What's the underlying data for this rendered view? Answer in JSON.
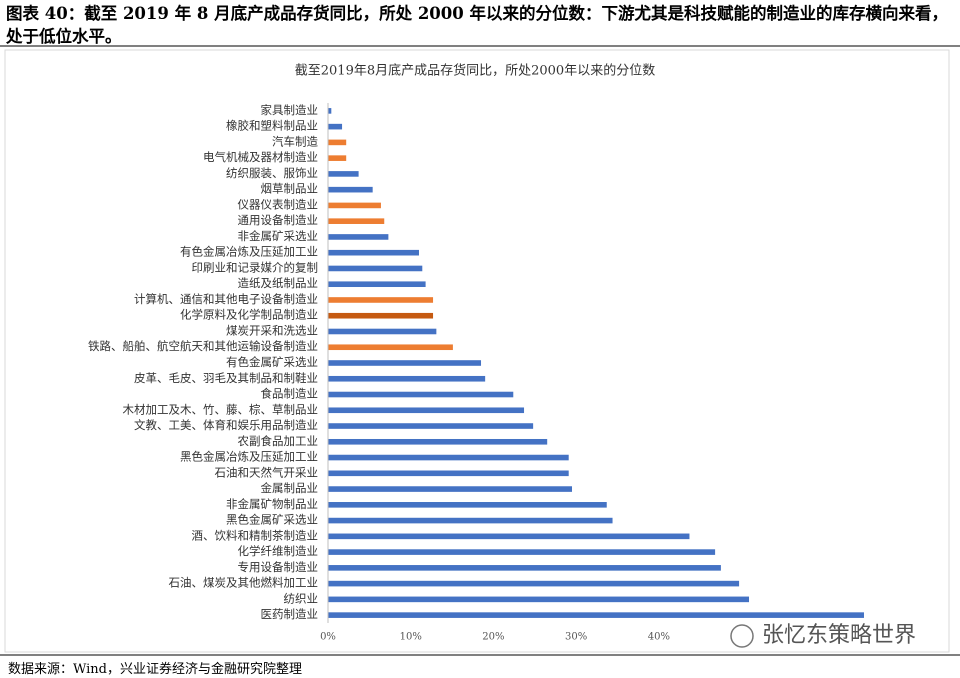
{
  "header": {
    "title": "图表 40：截至 2019 年 8 月底产成品存货同比，所处 2000 年以来的分位数：下游尤其是科技赋能的制造业的库存横向来看，处于低位水平。"
  },
  "chart_data": {
    "type": "hbar",
    "title": "截至2019年8月底产成品存货同比，所处2000年以来的分位数",
    "categories": [
      "家具制造业",
      "橡胶和塑料制品业",
      "汽车制造",
      "电气机械及器材制造业",
      "纺织服装、服饰业",
      "烟草制品业",
      "仪器仪表制造业",
      "通用设备制造业",
      "非金属矿采选业",
      "有色金属冶炼及压延加工业",
      "印刷业和记录媒介的复制",
      "造纸及纸制品业",
      "计算机、通信和其他电子设备制造业",
      "化学原料及化学制品制造业",
      "煤炭开采和洗选业",
      "铁路、船舶、航空航天和其他运输设备制造业",
      "有色金属矿采选业",
      "皮革、毛皮、羽毛及其制品和制鞋业",
      "食品制造业",
      "木材加工及木、竹、藤、棕、草制品业",
      "文教、工美、体育和娱乐用品制造业",
      "农副食品加工业",
      "黑色金属冶炼及压延加工业",
      "石油和天然气开采业",
      "金属制品业",
      "非金属矿物制品业",
      "黑色金属矿采选业",
      "酒、饮料和精制茶制造业",
      "化学纤维制造业",
      "专用设备制造业",
      "石油、煤炭及其他燃料加工业",
      "纺织业",
      "医药制造业"
    ],
    "values": [
      0.4,
      1.7,
      2.2,
      2.2,
      3.7,
      5.4,
      6.4,
      6.8,
      7.3,
      11.0,
      11.4,
      11.8,
      12.7,
      12.7,
      13.1,
      15.1,
      18.5,
      19.0,
      22.4,
      23.7,
      24.8,
      26.5,
      29.1,
      29.1,
      29.5,
      33.7,
      34.4,
      43.7,
      46.8,
      47.5,
      49.7,
      50.9,
      64.8
    ],
    "colors": [
      "#4472c4",
      "#4472c4",
      "#ed7d31",
      "#ed7d31",
      "#4472c4",
      "#4472c4",
      "#ed7d31",
      "#ed7d31",
      "#4472c4",
      "#4472c4",
      "#4472c4",
      "#4472c4",
      "#ed7d31",
      "#c55a11",
      "#4472c4",
      "#ed7d31",
      "#4472c4",
      "#4472c4",
      "#4472c4",
      "#4472c4",
      "#4472c4",
      "#4472c4",
      "#4472c4",
      "#4472c4",
      "#4472c4",
      "#4472c4",
      "#4472c4",
      "#4472c4",
      "#4472c4",
      "#4472c4",
      "#4472c4",
      "#4472c4",
      "#4472c4"
    ],
    "xlim": [
      0,
      70
    ],
    "xticks": [
      {
        "value": 0,
        "label": "0%"
      },
      {
        "value": 10,
        "label": "10%"
      },
      {
        "value": 20,
        "label": "20%"
      },
      {
        "value": 30,
        "label": "30%"
      },
      {
        "value": 40,
        "label": "40%"
      }
    ],
    "watermark": "张忆东策略世界"
  },
  "footer": {
    "source": "数据来源：Wind，兴业证券经济与金融研究院整理"
  }
}
